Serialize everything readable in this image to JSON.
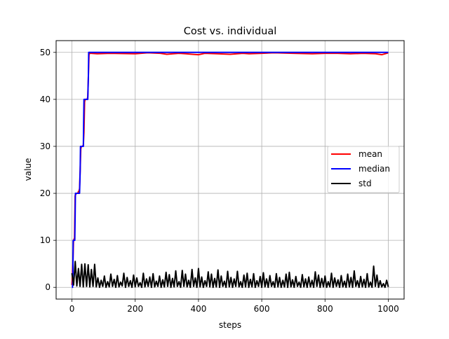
{
  "chart_data": {
    "type": "line",
    "title": "Cost vs. individual",
    "xlabel": "steps",
    "ylabel": "value",
    "xlim": [
      -50,
      1050
    ],
    "ylim": [
      -2.5,
      52.5
    ],
    "xticks": [
      0,
      200,
      400,
      600,
      800,
      1000
    ],
    "yticks": [
      0,
      10,
      20,
      30,
      40,
      50
    ],
    "grid": true,
    "legend_position": "center-right",
    "series": [
      {
        "name": "mean",
        "color": "#ff0000",
        "x": [
          0,
          3,
          5,
          8,
          10,
          14,
          18,
          20,
          22,
          24,
          26,
          28,
          30,
          32,
          36,
          38,
          40,
          42,
          44,
          48,
          50,
          52,
          54,
          56,
          60,
          80,
          120,
          200,
          240,
          280,
          300,
          320,
          340,
          360,
          380,
          400,
          420,
          460,
          500,
          540,
          560,
          600,
          640,
          700,
          760,
          800,
          840,
          880,
          920,
          960,
          980,
          1000
        ],
        "y": [
          0.5,
          5,
          10,
          10.5,
          19.5,
          20,
          20,
          20.3,
          20.5,
          21,
          25,
          29.5,
          30,
          30,
          30.2,
          33,
          39.5,
          40,
          40,
          40,
          40.5,
          45,
          49.5,
          49.8,
          49.8,
          49.7,
          49.8,
          49.7,
          49.9,
          49.8,
          49.6,
          49.7,
          49.8,
          49.7,
          49.6,
          49.5,
          49.8,
          49.7,
          49.6,
          49.8,
          49.7,
          49.8,
          49.9,
          49.8,
          49.7,
          49.8,
          49.8,
          49.7,
          49.8,
          49.7,
          49.5,
          49.9
        ]
      },
      {
        "name": "median",
        "color": "#0000ff",
        "x": [
          0,
          2,
          3,
          4,
          5,
          6,
          9,
          10,
          11,
          20,
          21,
          22,
          24,
          26,
          27,
          28,
          30,
          36,
          37,
          38,
          40,
          48,
          50,
          52,
          53,
          54,
          56,
          1000
        ],
        "y": [
          0,
          0,
          3,
          10,
          10,
          10,
          10,
          15,
          20,
          20,
          20,
          20,
          20,
          25,
          30,
          30,
          30,
          30,
          35,
          40,
          40,
          40,
          40,
          45,
          50,
          50,
          50,
          50
        ]
      },
      {
        "name": "std",
        "color": "#000000",
        "peaks": [
          3,
          0.5,
          5.5,
          0.3,
          4,
          0.2,
          4.9,
          0.1,
          5,
          0.2,
          4.8,
          0.1,
          3.8,
          0.2,
          4.9,
          0.1,
          2,
          0,
          1.5,
          0.2,
          2.4,
          0,
          1.2,
          0.1,
          2.8,
          0.2,
          1.7,
          0,
          2.5,
          0.1,
          1.1,
          0.3,
          3,
          0,
          2.1,
          0.2,
          1.4,
          0,
          2.6,
          0.1,
          2,
          0.2,
          1,
          0,
          3,
          0.1,
          1.8,
          0.2,
          2.2,
          0,
          2.9,
          0.1,
          1.3,
          0.2,
          2.4,
          0,
          1.6,
          0.1,
          3.2,
          0.2,
          2.7,
          0,
          1.9,
          0.1,
          3.5,
          0.2,
          1.2,
          0,
          3.6,
          0.2,
          2.8,
          0.1,
          1.5,
          0,
          3.8,
          0.2,
          2,
          0,
          4,
          0.1,
          2.2,
          0,
          1.4,
          0.2,
          3.3,
          0.1,
          2.8,
          0,
          1.9,
          0.1,
          3.7,
          0,
          2.4,
          0.2,
          1.3,
          0,
          3.4,
          0.1,
          2.1,
          0,
          1.8,
          0.2,
          3.4,
          0.1,
          1.2,
          0,
          2.6,
          0.1,
          3,
          0,
          1.7,
          0.1,
          2.9,
          0,
          1.4,
          0.2,
          2.3,
          0,
          3.1,
          0.1,
          1.8,
          0,
          2.5,
          0.2,
          1.2,
          0,
          2.9,
          0.1,
          2.1,
          0,
          1.5,
          0.1,
          2.8,
          0,
          3.2,
          0.1,
          1.6,
          0,
          2.3,
          0.2,
          1.1,
          0,
          2.7,
          0.1,
          1.8,
          0,
          2.2,
          0.1,
          1.5,
          0,
          3.3,
          0.2,
          2.6,
          0,
          1.9,
          0.1,
          2.4,
          0,
          1.2,
          0.1,
          3,
          0,
          2,
          0.2,
          1.6,
          0,
          2.5,
          0.1,
          1.3,
          0,
          2.8,
          0.1,
          2.1,
          0,
          3.5,
          0.2,
          1.4,
          0,
          2.3,
          0.1,
          1.7,
          0,
          2.9,
          0.1,
          1.1,
          0,
          4.5,
          0.2,
          2.6,
          0,
          1.4,
          0.1,
          0.8,
          0,
          1.5,
          0.1
        ]
      }
    ]
  }
}
